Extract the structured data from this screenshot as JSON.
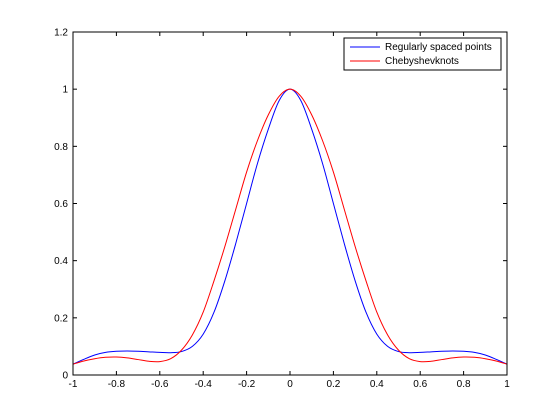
{
  "chart_data": {
    "type": "line",
    "title": "",
    "xlabel": "",
    "ylabel": "",
    "xlim": [
      -1,
      1
    ],
    "ylim": [
      0,
      1.2
    ],
    "xticks": [
      -1,
      -0.8,
      -0.6,
      -0.4,
      -0.2,
      0,
      0.2,
      0.4,
      0.6,
      0.8,
      1
    ],
    "xtick_labels": [
      "-1",
      "-0.8",
      "-0.6",
      "-0.4",
      "-0.2",
      "0",
      "0.2",
      "0.4",
      "0.6",
      "0.8",
      "1"
    ],
    "yticks": [
      0,
      0.2,
      0.4,
      0.6,
      0.8,
      1,
      1.2
    ],
    "ytick_labels": [
      "0",
      "0.2",
      "0.4",
      "0.6",
      "0.8",
      "1",
      "1.2"
    ],
    "grid": false,
    "legend_position": "top-right",
    "series": [
      {
        "name": "Regularly spaced points",
        "color": "#0000ff",
        "x": [
          -1,
          -0.95,
          -0.9,
          -0.85,
          -0.8,
          -0.75,
          -0.7,
          -0.65,
          -0.6,
          -0.55,
          -0.5,
          -0.45,
          -0.4,
          -0.35,
          -0.3,
          -0.25,
          -0.2,
          -0.15,
          -0.1,
          -0.05,
          0,
          0.05,
          0.1,
          0.15,
          0.2,
          0.25,
          0.3,
          0.35,
          0.4,
          0.45,
          0.5,
          0.55,
          0.6,
          0.65,
          0.7,
          0.75,
          0.8,
          0.85,
          0.9,
          0.95,
          1
        ],
        "y": [
          0.038,
          0.055,
          0.07,
          0.079,
          0.083,
          0.084,
          0.083,
          0.081,
          0.079,
          0.078,
          0.082,
          0.1,
          0.143,
          0.22,
          0.33,
          0.46,
          0.6,
          0.74,
          0.86,
          0.96,
          1.0,
          0.96,
          0.86,
          0.74,
          0.6,
          0.46,
          0.33,
          0.22,
          0.143,
          0.1,
          0.082,
          0.078,
          0.079,
          0.081,
          0.083,
          0.084,
          0.083,
          0.079,
          0.07,
          0.055,
          0.038
        ]
      },
      {
        "name": "Chebyshevknots",
        "color": "#ff0000",
        "x": [
          -1,
          -0.95,
          -0.9,
          -0.85,
          -0.8,
          -0.75,
          -0.7,
          -0.65,
          -0.6,
          -0.55,
          -0.5,
          -0.45,
          -0.4,
          -0.35,
          -0.3,
          -0.25,
          -0.2,
          -0.15,
          -0.1,
          -0.05,
          0,
          0.05,
          0.1,
          0.15,
          0.2,
          0.25,
          0.3,
          0.35,
          0.4,
          0.45,
          0.5,
          0.55,
          0.6,
          0.65,
          0.7,
          0.75,
          0.8,
          0.85,
          0.9,
          0.95,
          1
        ],
        "y": [
          0.038,
          0.049,
          0.057,
          0.062,
          0.063,
          0.06,
          0.054,
          0.048,
          0.047,
          0.057,
          0.087,
          0.14,
          0.22,
          0.33,
          0.45,
          0.58,
          0.71,
          0.82,
          0.91,
          0.975,
          1.0,
          0.975,
          0.91,
          0.82,
          0.71,
          0.58,
          0.45,
          0.33,
          0.22,
          0.14,
          0.087,
          0.057,
          0.047,
          0.048,
          0.054,
          0.06,
          0.063,
          0.062,
          0.057,
          0.049,
          0.038
        ]
      }
    ]
  }
}
